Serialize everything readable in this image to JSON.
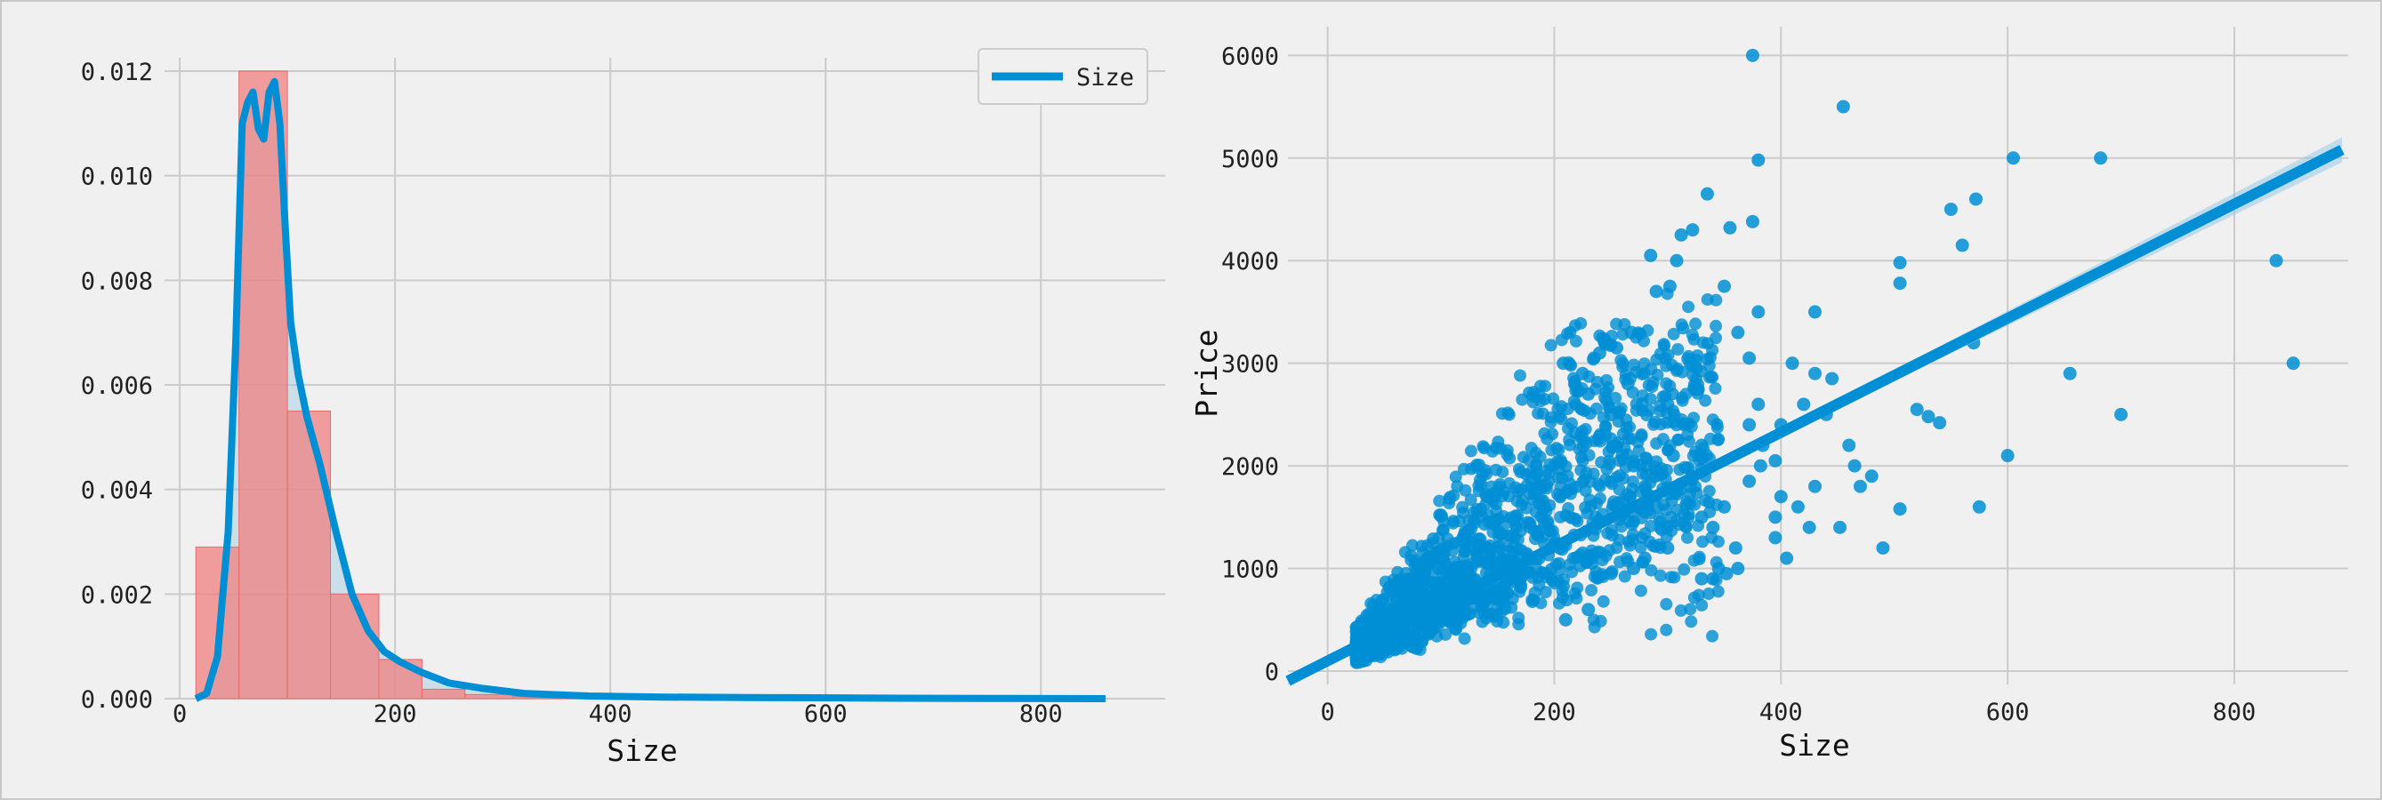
{
  "colors": {
    "background": "#f0f0f0",
    "grid": "#cbcbcb",
    "hist_fill": "#f08080",
    "hist_stroke": "#e86a6a",
    "kde_line": "#008fd5",
    "kde_fill": "#9ecae1",
    "scatter_point": "#008fd5",
    "regression_line": "#008fd5"
  },
  "chart_data": [
    {
      "type": "bar",
      "subtype": "histogram-with-kde",
      "xlabel": "Size",
      "ylabel": "",
      "xlim": [
        -10,
        870
      ],
      "ylim": [
        0,
        0.012
      ],
      "xticks": [
        0,
        200,
        400,
        600,
        800
      ],
      "xtick_labels": [
        "0",
        "200",
        "400",
        "600",
        "800"
      ],
      "yticks": [
        0,
        0.002,
        0.004,
        0.006,
        0.008,
        0.01,
        0.012
      ],
      "ytick_labels": [
        "0.000",
        "0.002",
        "0.004",
        "0.006",
        "0.008",
        "0.010",
        "0.012"
      ],
      "grid": true,
      "legend": {
        "placement": "top-right",
        "entries": [
          "Size"
        ]
      },
      "histogram": {
        "bin_edges": [
          15,
          55,
          100,
          140,
          185,
          225,
          265,
          310,
          350,
          390,
          435,
          475,
          515,
          560,
          600,
          640,
          685,
          725,
          765,
          810,
          855
        ],
        "density": [
          0.0029,
          0.012,
          0.0055,
          0.002,
          0.00075,
          0.00018,
          8e-05,
          4e-05,
          3e-05,
          2e-05,
          2e-05,
          1e-05,
          1e-05,
          1e-05,
          8e-06,
          6e-06,
          5e-06,
          4e-06,
          3e-06,
          2e-06
        ]
      },
      "kde": {
        "name": "Size",
        "x": [
          15,
          25,
          35,
          45,
          52,
          58,
          63,
          68,
          73,
          78,
          83,
          88,
          93,
          98,
          103,
          110,
          118,
          130,
          145,
          160,
          175,
          190,
          205,
          225,
          250,
          280,
          320,
          380,
          450,
          550,
          650,
          750,
          860
        ],
        "y": [
          0.0,
          0.0001,
          0.0008,
          0.0032,
          0.0068,
          0.011,
          0.0114,
          0.0116,
          0.0109,
          0.0107,
          0.0116,
          0.0118,
          0.011,
          0.009,
          0.0072,
          0.0062,
          0.0054,
          0.0045,
          0.0032,
          0.002,
          0.0013,
          0.0009,
          0.0007,
          0.0005,
          0.0003,
          0.0002,
          0.0001,
          5e-05,
          3e-05,
          2e-05,
          1e-05,
          5e-06,
          0.0
        ]
      }
    },
    {
      "type": "scatter",
      "subtype": "scatter-with-regression",
      "xlabel": "Size",
      "ylabel": "Price",
      "xlim": [
        -35,
        895
      ],
      "ylim": [
        -130,
        6150
      ],
      "xticks": [
        0,
        200,
        400,
        600,
        800
      ],
      "xtick_labels": [
        "0",
        "200",
        "400",
        "600",
        "800"
      ],
      "yticks": [
        0,
        1000,
        2000,
        3000,
        4000,
        5000,
        6000
      ],
      "ytick_labels": [
        "0",
        "1000",
        "2000",
        "3000",
        "4000",
        "5000",
        "6000"
      ],
      "grid": true,
      "regression": {
        "x": [
          -35,
          895
        ],
        "y": [
          -95,
          5080
        ]
      },
      "outliers": [
        [
          375,
          6000
        ],
        [
          455,
          5500
        ],
        [
          380,
          4980
        ],
        [
          605,
          5000
        ],
        [
          682,
          5000
        ],
        [
          837,
          4000
        ],
        [
          852,
          3000
        ],
        [
          700,
          2500
        ],
        [
          655,
          2900
        ],
        [
          572,
          4600
        ],
        [
          550,
          4500
        ],
        [
          560,
          4150
        ],
        [
          505,
          3980
        ],
        [
          505,
          3780
        ],
        [
          570,
          3200
        ],
        [
          520,
          2550
        ],
        [
          530,
          2480
        ],
        [
          540,
          2420
        ],
        [
          575,
          1600
        ],
        [
          600,
          2100
        ],
        [
          505,
          1580
        ],
        [
          490,
          1200
        ],
        [
          480,
          1900
        ],
        [
          470,
          1800
        ],
        [
          460,
          2200
        ],
        [
          445,
          2850
        ],
        [
          430,
          3500
        ],
        [
          430,
          2900
        ],
        [
          420,
          2600
        ],
        [
          410,
          3000
        ],
        [
          400,
          2400
        ],
        [
          395,
          2050
        ],
        [
          395,
          1500
        ],
        [
          405,
          1100
        ],
        [
          380,
          3500
        ],
        [
          375,
          4380
        ],
        [
          355,
          4320
        ],
        [
          350,
          3750
        ],
        [
          335,
          4650
        ],
        [
          322,
          4300
        ],
        [
          312,
          4250
        ],
        [
          308,
          4000
        ],
        [
          302,
          3750
        ],
        [
          290,
          3700
        ],
        [
          285,
          4050
        ],
        [
          362,
          3300
        ],
        [
          372,
          3050
        ],
        [
          380,
          2600
        ],
        [
          382,
          2000
        ],
        [
          372,
          1850
        ],
        [
          350,
          1600
        ],
        [
          330,
          1500
        ],
        [
          300,
          1200
        ],
        [
          280,
          1100
        ],
        [
          270,
          1000
        ],
        [
          250,
          950
        ],
        [
          230,
          600
        ],
        [
          210,
          500
        ],
        [
          360,
          1200
        ],
        [
          345,
          1000
        ],
        [
          330,
          900
        ],
        [
          320,
          1800
        ],
        [
          305,
          2100
        ],
        [
          300,
          2600
        ],
        [
          265,
          2800
        ],
        [
          268,
          3300
        ],
        [
          255,
          3150
        ],
        [
          245,
          3200
        ],
        [
          240,
          3100
        ],
        [
          235,
          3050
        ],
        [
          225,
          2900
        ],
        [
          218,
          2800
        ],
        [
          208,
          3000
        ],
        [
          425,
          1400
        ],
        [
          395,
          1300
        ],
        [
          362,
          1000
        ],
        [
          352,
          950
        ],
        [
          340,
          900
        ],
        [
          340,
          1400
        ],
        [
          290,
          1950
        ],
        [
          290,
          1600
        ],
        [
          280,
          1800
        ],
        [
          270,
          2000
        ],
        [
          260,
          2100
        ],
        [
          245,
          2300
        ],
        [
          250,
          2500
        ],
        [
          430,
          1800
        ],
        [
          452,
          1400
        ],
        [
          465,
          2000
        ],
        [
          440,
          2500
        ],
        [
          415,
          1600
        ],
        [
          400,
          1700
        ],
        [
          384,
          2200
        ],
        [
          372,
          2400
        ],
        [
          330,
          2200
        ],
        [
          315,
          2400
        ],
        [
          230,
          2700
        ],
        [
          320,
          3000
        ]
      ]
    }
  ]
}
